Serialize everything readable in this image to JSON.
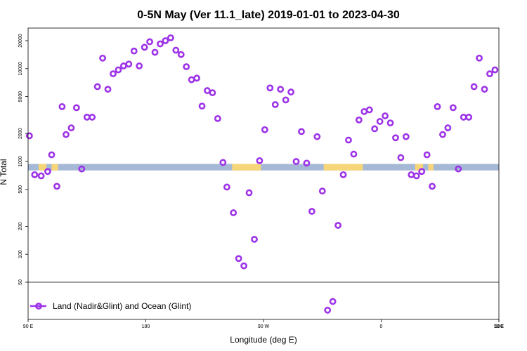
{
  "chart_data": {
    "type": "scatter",
    "title": "0-5N May (Ver 11.1_late)   2019-01-01 to 2023-04-30",
    "xlabel": "Longitude (deg E)",
    "ylabel": "N Total",
    "x_tick_labels": [
      "90 E",
      "180",
      "90 W",
      "0",
      "90 E",
      "180"
    ],
    "y_tick_labels": [
      "50",
      "100",
      "200",
      "500",
      "1000",
      "2000",
      "5000",
      "10000",
      "20000"
    ],
    "y_scale": "log",
    "ylim": [
      20,
      28000
    ],
    "xlim": [
      90,
      450
    ],
    "band_range": [
      800,
      940
    ],
    "legend_position": "bottom-left",
    "colors": {
      "marker": "#9d33e8",
      "ocean_band": "#a5b9d6",
      "land_band": "#f7d679"
    },
    "series": [
      {
        "name": "Land (Nadir&Glint) and Ocean (Glint)",
        "points": [
          [
            91,
            1890
          ],
          [
            95,
            720
          ],
          [
            100,
            700
          ],
          [
            105,
            780
          ],
          [
            108,
            1180
          ],
          [
            112,
            540
          ],
          [
            116,
            3900
          ],
          [
            119,
            1950
          ],
          [
            123,
            2300
          ],
          [
            127,
            3800
          ],
          [
            131,
            830
          ],
          [
            135,
            3000
          ],
          [
            139,
            3000
          ],
          [
            143,
            6400
          ],
          [
            147,
            13000
          ],
          [
            151,
            6000
          ],
          [
            155,
            8800
          ],
          [
            159,
            9700
          ],
          [
            163,
            10700
          ],
          [
            167,
            11200
          ],
          [
            171,
            15500
          ],
          [
            175,
            10700
          ],
          [
            179,
            17000
          ],
          [
            183,
            19500
          ],
          [
            187,
            15000
          ],
          [
            191,
            18500
          ],
          [
            195,
            20000
          ],
          [
            199,
            21500
          ],
          [
            203,
            15800
          ],
          [
            207,
            14200
          ],
          [
            211,
            10500
          ],
          [
            215,
            7600
          ],
          [
            219,
            7900
          ],
          [
            223,
            3950
          ],
          [
            227,
            5800
          ],
          [
            231,
            5500
          ],
          [
            235,
            2900
          ],
          [
            239,
            975
          ],
          [
            242,
            530
          ],
          [
            247,
            280
          ],
          [
            251,
            90
          ],
          [
            255,
            75
          ],
          [
            259,
            460
          ],
          [
            263,
            145
          ],
          [
            267,
            1020
          ],
          [
            271,
            2200
          ],
          [
            275,
            6200
          ],
          [
            279,
            4100
          ],
          [
            283,
            6000
          ],
          [
            287,
            4600
          ],
          [
            291,
            5600
          ],
          [
            295,
            1000
          ],
          [
            299,
            2100
          ],
          [
            303,
            960
          ],
          [
            307,
            290
          ],
          [
            311,
            1850
          ],
          [
            315,
            480
          ],
          [
            319,
            25
          ],
          [
            323,
            31
          ],
          [
            327,
            205
          ],
          [
            331,
            720
          ],
          [
            335,
            1700
          ],
          [
            339,
            1200
          ],
          [
            343,
            2800
          ],
          [
            347,
            3450
          ],
          [
            351,
            3600
          ],
          [
            355,
            2250
          ],
          [
            359,
            2700
          ],
          [
            363,
            3100
          ],
          [
            367,
            2600
          ],
          [
            371,
            1800
          ],
          [
            375,
            1100
          ],
          [
            379,
            1850
          ],
          [
            383,
            720
          ],
          [
            387,
            700
          ],
          [
            391,
            780
          ],
          [
            395,
            1180
          ],
          [
            399,
            540
          ],
          [
            403,
            3900
          ],
          [
            407,
            1950
          ],
          [
            411,
            2300
          ],
          [
            415,
            3800
          ],
          [
            419,
            830
          ],
          [
            423,
            3000
          ],
          [
            427,
            3000
          ],
          [
            431,
            6400
          ],
          [
            435,
            13000
          ],
          [
            439,
            6000
          ],
          [
            443,
            8800
          ],
          [
            447,
            9700
          ]
        ]
      }
    ]
  }
}
